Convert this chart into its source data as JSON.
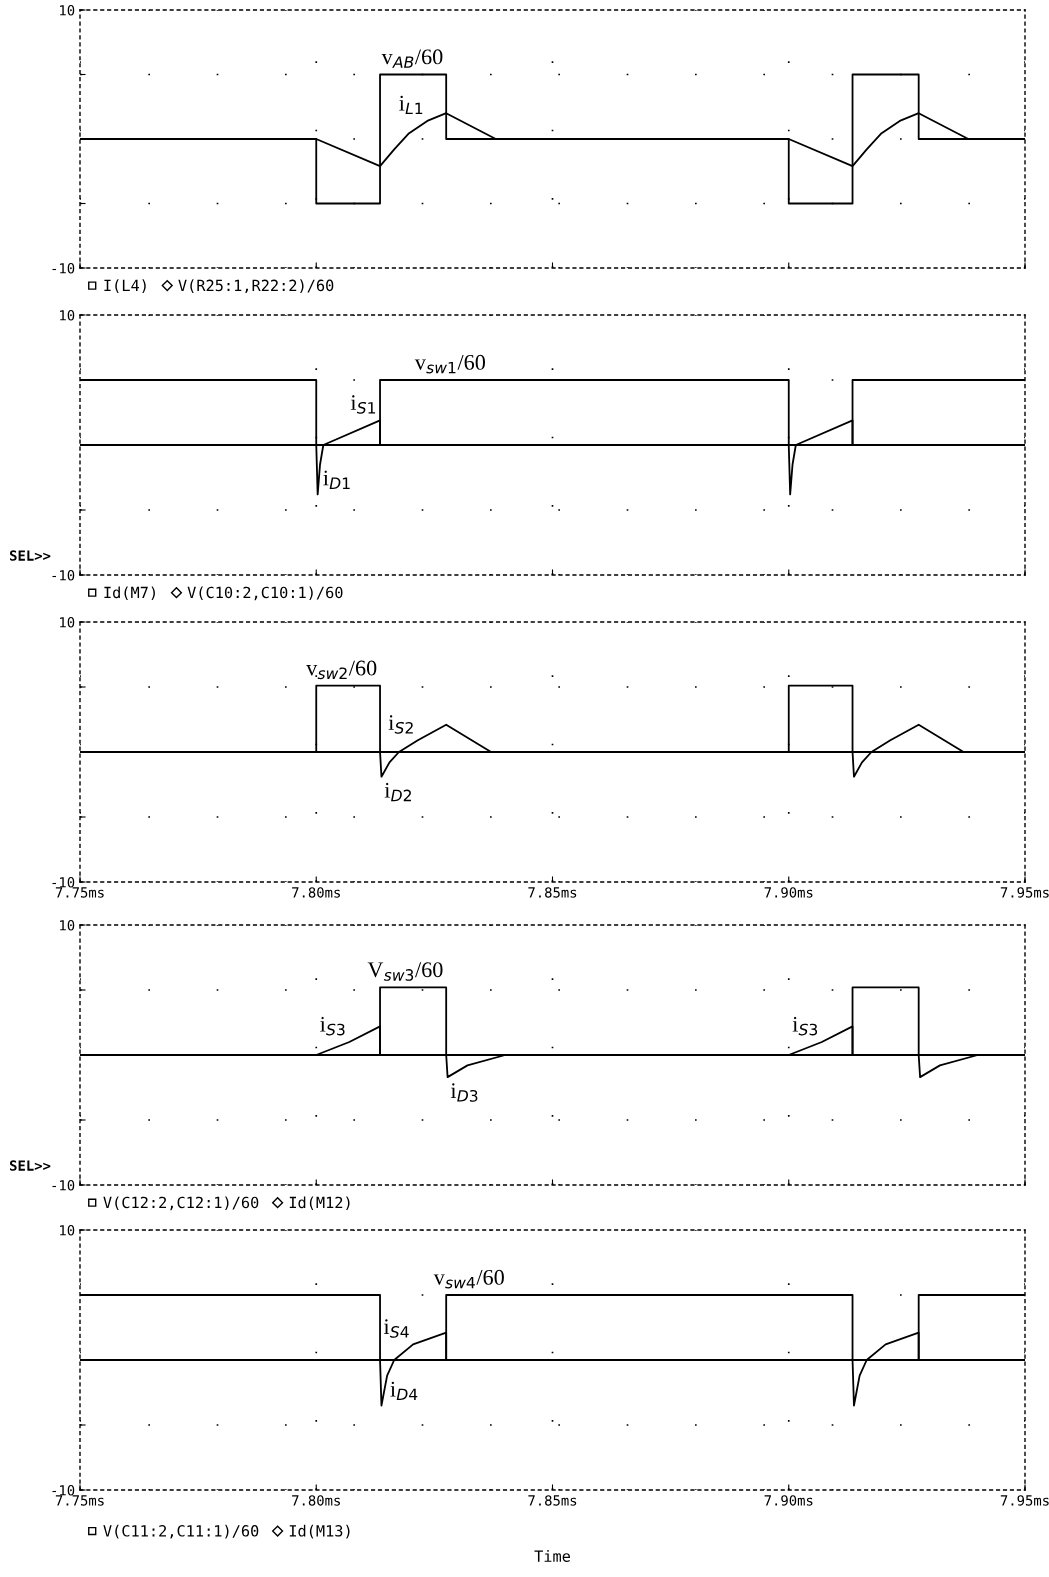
{
  "chart_data": [
    {
      "type": "line",
      "xlim": [
        7.75,
        7.95
      ],
      "ylim": [
        -10,
        10
      ],
      "xticks": [
        {
          "value": 7.75,
          "label": null
        },
        {
          "value": 7.8,
          "label": null
        },
        {
          "value": 7.85,
          "label": null
        },
        {
          "value": 7.9,
          "label": null
        },
        {
          "value": 7.95,
          "label": null
        }
      ],
      "yticks": [
        {
          "value": -10,
          "label": "-10"
        },
        {
          "value": -5,
          "label": null
        },
        {
          "value": 0,
          "label": null
        },
        {
          "value": 5,
          "label": null
        },
        {
          "value": 10,
          "label": "10"
        }
      ],
      "tick_labels": "y",
      "grid": true,
      "legend": "bottom left",
      "line_style": "solid",
      "series": [
        {
          "name": "I(L4)",
          "color": "#000000",
          "x": [
            7.75,
            7.8,
            7.8135,
            7.8165,
            7.8195,
            7.8235,
            7.8275,
            7.838,
            7.9,
            7.9135,
            7.9165,
            7.9195,
            7.9235,
            7.9275,
            7.938,
            7.95
          ],
          "values": [
            0,
            0,
            -2.1,
            -0.8,
            0.4,
            1.4,
            2.0,
            0,
            0,
            -2.1,
            -0.8,
            0.4,
            1.4,
            2.0,
            0,
            0
          ]
        },
        {
          "name": "V(R25:1,R22:2)/60",
          "color": "#000000",
          "x": [
            7.75,
            7.8,
            7.8,
            7.8135,
            7.8135,
            7.8275,
            7.8275,
            7.9,
            7.9,
            7.9135,
            7.9135,
            7.9275,
            7.9275,
            7.95
          ],
          "values": [
            0,
            0,
            -5,
            -5,
            5,
            5,
            0,
            0,
            -5,
            -5,
            5,
            5,
            0,
            0
          ]
        }
      ],
      "annotations": [
        {
          "text": "v$_{AB}$/60",
          "x": 7.8275,
          "y": 5
        },
        {
          "text": "i$_{L1}$",
          "x": 7.8235,
          "y": 1.4
        }
      ]
    },
    {
      "type": "line",
      "xlim": [
        7.75,
        7.95
      ],
      "ylim": [
        -10,
        10
      ],
      "xticks": [
        {
          "value": 7.75,
          "label": null
        },
        {
          "value": 7.8,
          "label": null
        },
        {
          "value": 7.85,
          "label": null
        },
        {
          "value": 7.9,
          "label": null
        },
        {
          "value": 7.95,
          "label": null
        }
      ],
      "yticks": [
        {
          "value": -10,
          "label": "-10"
        },
        {
          "value": -5,
          "label": null
        },
        {
          "value": 0,
          "label": null
        },
        {
          "value": 5,
          "label": null
        },
        {
          "value": 10,
          "label": "10"
        }
      ],
      "tick_labels": "y",
      "grid": true,
      "legend": "bottom left",
      "line_style": "solid",
      "series": [
        {
          "name": "Id(M7)",
          "color": "#000000",
          "x": [
            7.75,
            7.8,
            7.8003,
            7.8008,
            7.8015,
            7.8135,
            7.8135,
            7.9,
            7.9003,
            7.9008,
            7.9015,
            7.9135,
            7.9135,
            7.95
          ],
          "values": [
            0,
            0,
            -3.8,
            -1.5,
            0,
            1.9,
            0,
            0,
            -3.8,
            -1.5,
            0,
            1.9,
            0,
            0
          ]
        },
        {
          "name": "V(C10:2,C10:1)/60",
          "color": "#000000",
          "x": [
            7.75,
            7.8,
            7.8,
            7.8135,
            7.8135,
            7.9,
            7.9,
            7.9135,
            7.9135,
            7.95
          ],
          "values": [
            5,
            5,
            0,
            0,
            5,
            5,
            0,
            0,
            5,
            5
          ]
        }
      ],
      "annotations": [
        "SEL>>",
        {
          "text": "v$_{sw1}$/60",
          "x": 7.8365,
          "y": 5
        },
        {
          "text": "i$_{S1}$",
          "x": 7.8135,
          "y": 1.9
        },
        {
          "text": "i$_{D1}$",
          "x": 7.8008,
          "y": -1.5
        }
      ]
    },
    {
      "type": "line",
      "xlim": [
        7.75,
        7.95
      ],
      "ylim": [
        -10,
        10
      ],
      "xticks": [
        {
          "value": 7.75,
          "label": "7.75ms"
        },
        {
          "value": 7.8,
          "label": "7.80ms"
        },
        {
          "value": 7.85,
          "label": "7.85ms"
        },
        {
          "value": 7.9,
          "label": "7.90ms"
        },
        {
          "value": 7.95,
          "label": "7.95ms"
        }
      ],
      "yticks": [
        {
          "value": -10,
          "label": "-10"
        },
        {
          "value": -5,
          "label": null
        },
        {
          "value": 0,
          "label": null
        },
        {
          "value": 5,
          "label": null
        },
        {
          "value": 10,
          "label": "10"
        }
      ],
      "grid": true,
      "line_style": "solid",
      "series": [
        {
          "color": "#000000",
          "x": [
            7.75,
            7.8,
            7.8,
            7.8135,
            7.8135,
            7.9,
            7.9,
            7.9135,
            7.9135,
            7.95
          ],
          "values": [
            0,
            0,
            5.1,
            5.1,
            0,
            0,
            5.1,
            5.1,
            0,
            0
          ]
        },
        {
          "color": "#000000",
          "x": [
            7.75,
            7.8135,
            7.8138,
            7.8155,
            7.8175,
            7.8215,
            7.8275,
            7.837,
            7.9135,
            7.9138,
            7.9155,
            7.9175,
            7.9215,
            7.9275,
            7.937,
            7.95
          ],
          "values": [
            0,
            0,
            -1.9,
            -0.8,
            0,
            0.9,
            2.1,
            0,
            0,
            -1.9,
            -0.8,
            0,
            0.9,
            2.1,
            0,
            0
          ]
        }
      ],
      "annotations": [
        {
          "text": "v$_{sw2}$/60",
          "x": 7.8135,
          "y": 5.1
        },
        {
          "text": "i$_{S2}$",
          "x": 7.8215,
          "y": 0.9
        },
        {
          "text": "i$_{D2}$",
          "x": 7.8138,
          "y": -1.9
        }
      ]
    },
    {
      "type": "line",
      "xlim": [
        7.75,
        7.95
      ],
      "ylim": [
        -10,
        10
      ],
      "xticks": [
        {
          "value": 7.75,
          "label": null
        },
        {
          "value": 7.8,
          "label": null
        },
        {
          "value": 7.85,
          "label": null
        },
        {
          "value": 7.9,
          "label": null
        },
        {
          "value": 7.95,
          "label": null
        }
      ],
      "yticks": [
        {
          "value": -10,
          "label": "-10"
        },
        {
          "value": -5,
          "label": null
        },
        {
          "value": 0,
          "label": null
        },
        {
          "value": 5,
          "label": null
        },
        {
          "value": 10,
          "label": "10"
        }
      ],
      "tick_labels": "y",
      "grid": true,
      "legend": "bottom left",
      "line_style": "solid",
      "series": [
        {
          "name": "V(C12:2,C12:1)/60",
          "color": "#000000",
          "x": [
            7.75,
            7.8135,
            7.8135,
            7.8275,
            7.8275,
            7.9135,
            7.9135,
            7.9275,
            7.9275,
            7.95
          ],
          "values": [
            0,
            0,
            5.2,
            5.2,
            0,
            0,
            5.2,
            5.2,
            0,
            0
          ]
        },
        {
          "name": "Id(M12)",
          "color": "#000000",
          "x": [
            7.75,
            7.8,
            7.807,
            7.8135,
            7.8135,
            7.8275,
            7.8278,
            7.832,
            7.84,
            7.9,
            7.907,
            7.9135,
            7.9135,
            7.9275,
            7.9278,
            7.932,
            7.94,
            7.95
          ],
          "values": [
            0,
            0,
            1.0,
            2.2,
            0,
            0,
            -1.7,
            -0.8,
            0,
            0,
            1.0,
            2.2,
            0,
            0,
            -1.7,
            -0.8,
            0,
            0
          ]
        }
      ],
      "annotations": [
        "SEL>>",
        {
          "text": "V$_{sw3}$/60",
          "x": 7.8275,
          "y": 5.2
        },
        {
          "text": "i$_{S3}$",
          "x": 7.807,
          "y": 1.0
        },
        {
          "text": "i$_{S3}$",
          "x": 7.907,
          "y": 1.0
        },
        {
          "text": "i$_{D3}$",
          "x": 7.8278,
          "y": -1.7
        }
      ]
    },
    {
      "type": "line",
      "xlim": [
        7.75,
        7.95
      ],
      "ylim": [
        -10,
        10
      ],
      "xticks": [
        {
          "value": 7.75,
          "label": "7.75ms"
        },
        {
          "value": 7.8,
          "label": "7.80ms"
        },
        {
          "value": 7.85,
          "label": "7.85ms"
        },
        {
          "value": 7.9,
          "label": "7.90ms"
        },
        {
          "value": 7.95,
          "label": "7.95ms"
        }
      ],
      "yticks": [
        {
          "value": -10,
          "label": "-10"
        },
        {
          "value": -5,
          "label": null
        },
        {
          "value": 0,
          "label": null
        },
        {
          "value": 5,
          "label": null
        },
        {
          "value": 10,
          "label": "10"
        }
      ],
      "grid": true,
      "legend": "bottom left",
      "line_style": "solid",
      "xlabel": "Time",
      "series": [
        {
          "name": "V(C11:2,C11:1)/60",
          "color": "#000000",
          "x": [
            7.75,
            7.8135,
            7.8135,
            7.8275,
            7.8275,
            7.9135,
            7.9135,
            7.9275,
            7.9275,
            7.95
          ],
          "values": [
            5,
            5,
            0,
            0,
            5,
            5,
            0,
            0,
            5,
            5
          ]
        },
        {
          "name": "Id(M13)",
          "color": "#000000",
          "x": [
            7.75,
            7.8135,
            7.8138,
            7.815,
            7.8165,
            7.8205,
            7.8275,
            7.8275,
            7.9135,
            7.9138,
            7.915,
            7.9165,
            7.9205,
            7.9275,
            7.9275,
            7.95
          ],
          "values": [
            0,
            0,
            -3.5,
            -1.2,
            0,
            1.2,
            2.1,
            0,
            0,
            -3.5,
            -1.2,
            0,
            1.2,
            2.1,
            0,
            0
          ]
        }
      ],
      "annotations": [
        {
          "text": "v$_{sw4}$/60",
          "x": 7.8405,
          "y": 5
        },
        {
          "text": "i$_{S4}$",
          "x": 7.8205,
          "y": 1.2
        },
        {
          "text": "i$_{D4}$",
          "x": 7.815,
          "y": -1.2
        }
      ]
    }
  ]
}
